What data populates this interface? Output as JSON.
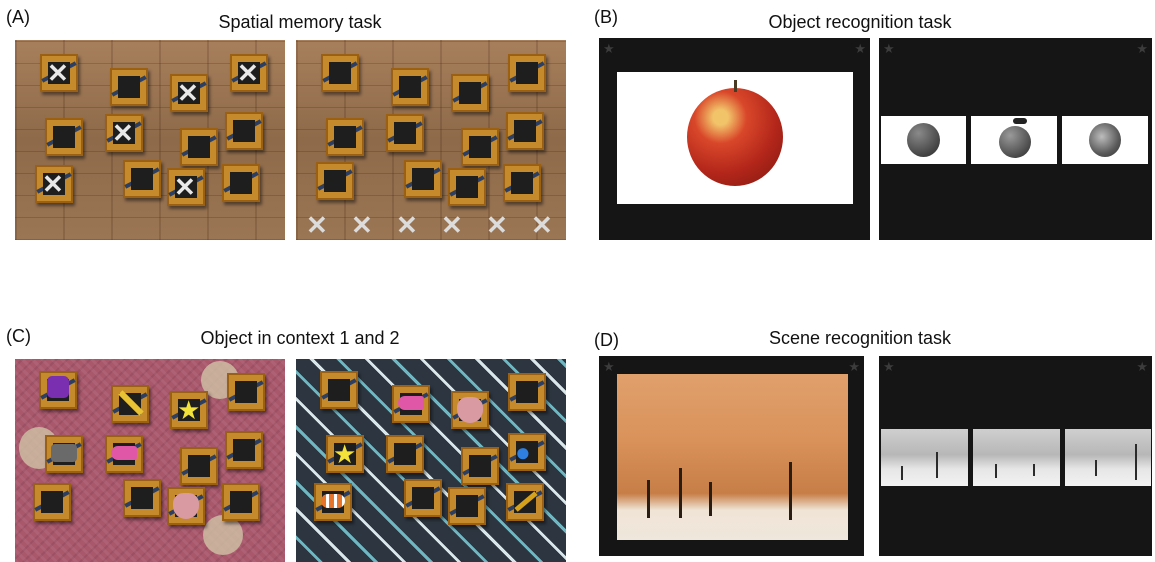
{
  "panels": {
    "a": {
      "letter": "(A)",
      "title": "Spatial memory task"
    },
    "b": {
      "letter": "(B)",
      "title": "Object recognition task"
    },
    "c": {
      "letter": "(C)",
      "title": "Object in context 1 and 2"
    },
    "d": {
      "letter": "(D)",
      "title": "Scene recognition task"
    }
  },
  "icons": {
    "cross": "✕",
    "star": "★",
    "corner_star": "★",
    "ball": "●"
  },
  "colors": {
    "box": "#c58a2c",
    "box_inner": "#1e1e1e",
    "dark_screen": "#151515",
    "apple_red": "#c8301f",
    "star_yellow": "#f3e23a",
    "whistle_pink": "#e157a7",
    "ball_blue": "#2e7fe0",
    "key_gold": "#d6a21b"
  }
}
